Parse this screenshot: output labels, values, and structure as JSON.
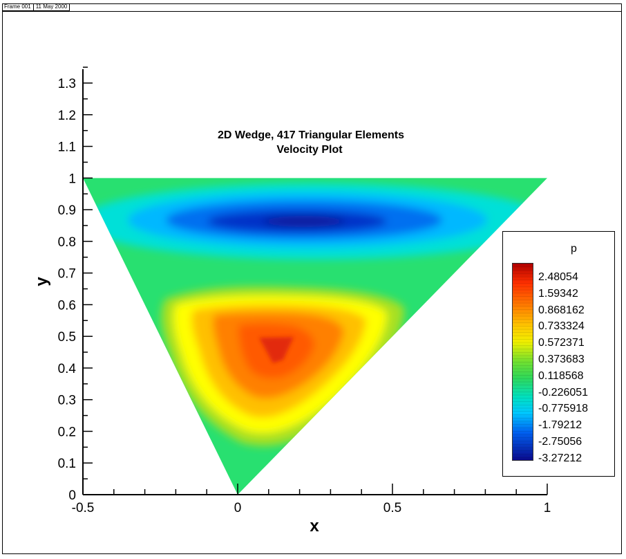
{
  "frame": {
    "name": "Frame 001",
    "date": "11 May 2000"
  },
  "chart_data": {
    "type": "contour",
    "title": "2D Wedge, 417 Triangular Elements",
    "subtitle": "Velocity Plot",
    "xlabel": "x",
    "ylabel": "y",
    "xlim": [
      -0.5,
      1
    ],
    "ylim": [
      0,
      1.37
    ],
    "x_ticks": [
      "-0.5",
      "0",
      "0.5",
      "1"
    ],
    "y_ticks": [
      "0",
      "0.1",
      "0.2",
      "0.3",
      "0.4",
      "0.5",
      "0.6",
      "0.7",
      "0.8",
      "0.9",
      "1",
      "1.1",
      "1.2",
      "1.3"
    ],
    "domain_vertices": [
      [
        -0.5,
        1
      ],
      [
        1,
        1
      ],
      [
        0,
        0
      ]
    ],
    "features": [
      {
        "kind": "minimum",
        "x": 0.23,
        "y": 0.88,
        "level": "-3.27212",
        "color": "#0a1a9c"
      },
      {
        "kind": "maximum",
        "x": 0.12,
        "y": 0.46,
        "level": "2.48054",
        "color": "#e22a10"
      }
    ],
    "legend": {
      "title": "p",
      "placement": "right",
      "levels": [
        "2.48054",
        "1.59342",
        "0.868162",
        "0.733324",
        "0.572371",
        "0.373683",
        "0.118568",
        "-0.226051",
        "-0.775918",
        "-1.79212",
        "-2.75056",
        "-3.27212"
      ]
    },
    "colormap": [
      "#0a0a8c",
      "#0050f0",
      "#00b8ff",
      "#00e0d8",
      "#28e070",
      "#5ee040",
      "#a8e020",
      "#ffff00",
      "#ffc000",
      "#ff8000",
      "#ff3000",
      "#c80000"
    ],
    "background_color": "#28e070"
  }
}
